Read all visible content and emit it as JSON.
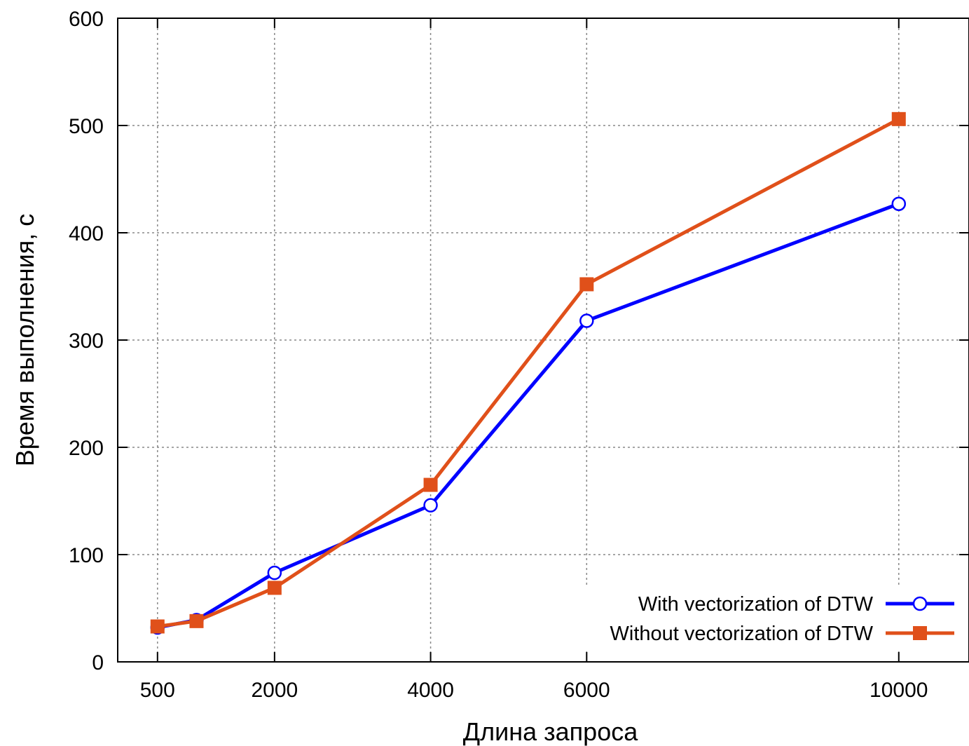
{
  "chart_data": {
    "type": "line",
    "xlabel": "Длина запроса",
    "ylabel": "Время выполнения, с",
    "ylim": [
      0,
      600
    ],
    "x_ticks": [
      500,
      2000,
      4000,
      6000,
      10000
    ],
    "y_ticks": [
      0,
      100,
      200,
      300,
      400,
      500,
      600
    ],
    "grid": true,
    "legend_position": "bottom-right",
    "x": [
      500,
      1000,
      2000,
      4000,
      6000,
      10000
    ],
    "series": [
      {
        "name": "With vectorization of DTW",
        "color": "#0000ff",
        "marker": "open-circle",
        "values": [
          32,
          39,
          83,
          146,
          318,
          427
        ]
      },
      {
        "name": "Without vectorization of DTW",
        "color": "#e0501a",
        "marker": "filled-square",
        "values": [
          33,
          38,
          69,
          165,
          352,
          506
        ]
      }
    ]
  }
}
